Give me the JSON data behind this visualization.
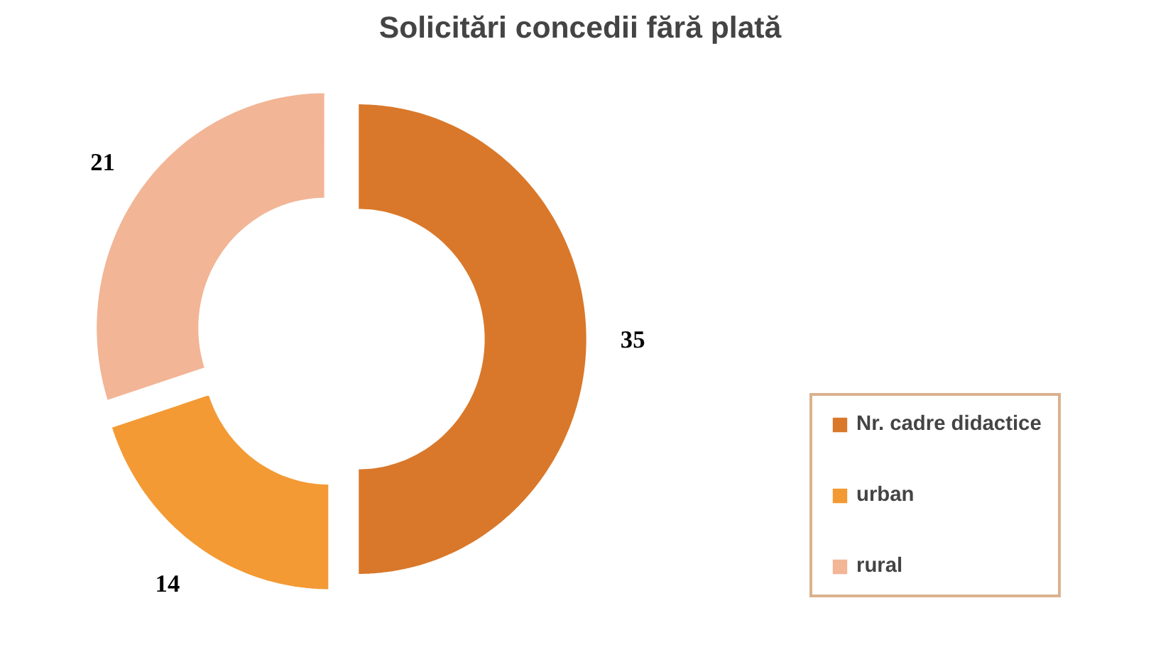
{
  "chart_data": {
    "type": "donut",
    "title": "Solicitări concedii fără plată",
    "categories": [
      "Nr. cadre didactice",
      "urban",
      "rural"
    ],
    "values": [
      35,
      14,
      21
    ],
    "colors": [
      "#d9782a",
      "#f39a34",
      "#f2b596"
    ],
    "data_labels": true,
    "legend": "right"
  }
}
